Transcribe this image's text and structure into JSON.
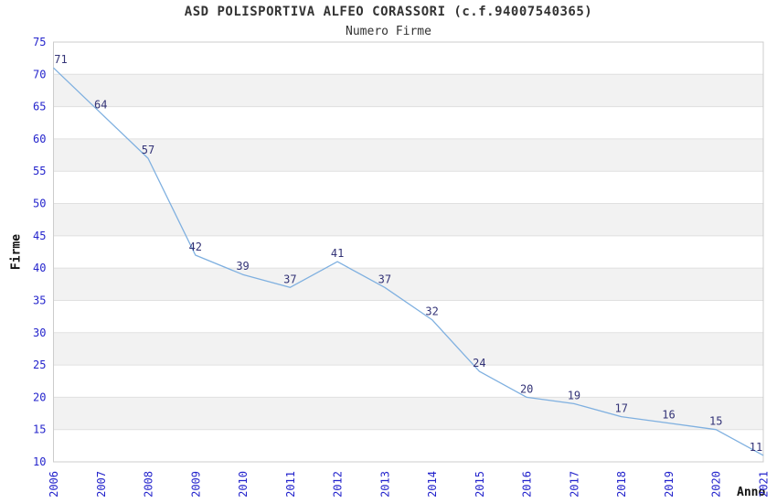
{
  "header": {
    "title": "ASD POLISPORTIVA ALFEO CORASSORI (c.f.94007540365)",
    "subtitle": "Numero Firme"
  },
  "chart_data": {
    "type": "line",
    "title": "ASD POLISPORTIVA ALFEO CORASSORI (c.f.94007540365)",
    "subtitle": "Numero Firme",
    "xlabel": "Anno",
    "ylabel": "Firme",
    "categories": [
      "2006",
      "2007",
      "2008",
      "2009",
      "2010",
      "2011",
      "2012",
      "2013",
      "2014",
      "2015",
      "2016",
      "2017",
      "2018",
      "2019",
      "2020",
      "2021"
    ],
    "series": [
      {
        "name": "Numero Firme",
        "values": [
          71,
          64,
          57,
          42,
          39,
          37,
          41,
          37,
          32,
          24,
          20,
          19,
          17,
          16,
          15,
          11
        ]
      }
    ],
    "ylim": [
      10,
      75
    ],
    "ytick_step": 5,
    "yticks": [
      10,
      15,
      20,
      25,
      30,
      35,
      40,
      45,
      50,
      55,
      60,
      65,
      70,
      75
    ],
    "grid": true,
    "legend": "none",
    "data_labels_visible": true,
    "x_tick_rotation": -90,
    "colors": {
      "line": "#7fb0e0",
      "data_label": "#333377",
      "axis_tick_label": "#2424cc",
      "band_fill": "#f2f2f2",
      "gridline": "#e0e0e0",
      "plot_border": "#cccccc",
      "title_text": "#333333"
    }
  }
}
